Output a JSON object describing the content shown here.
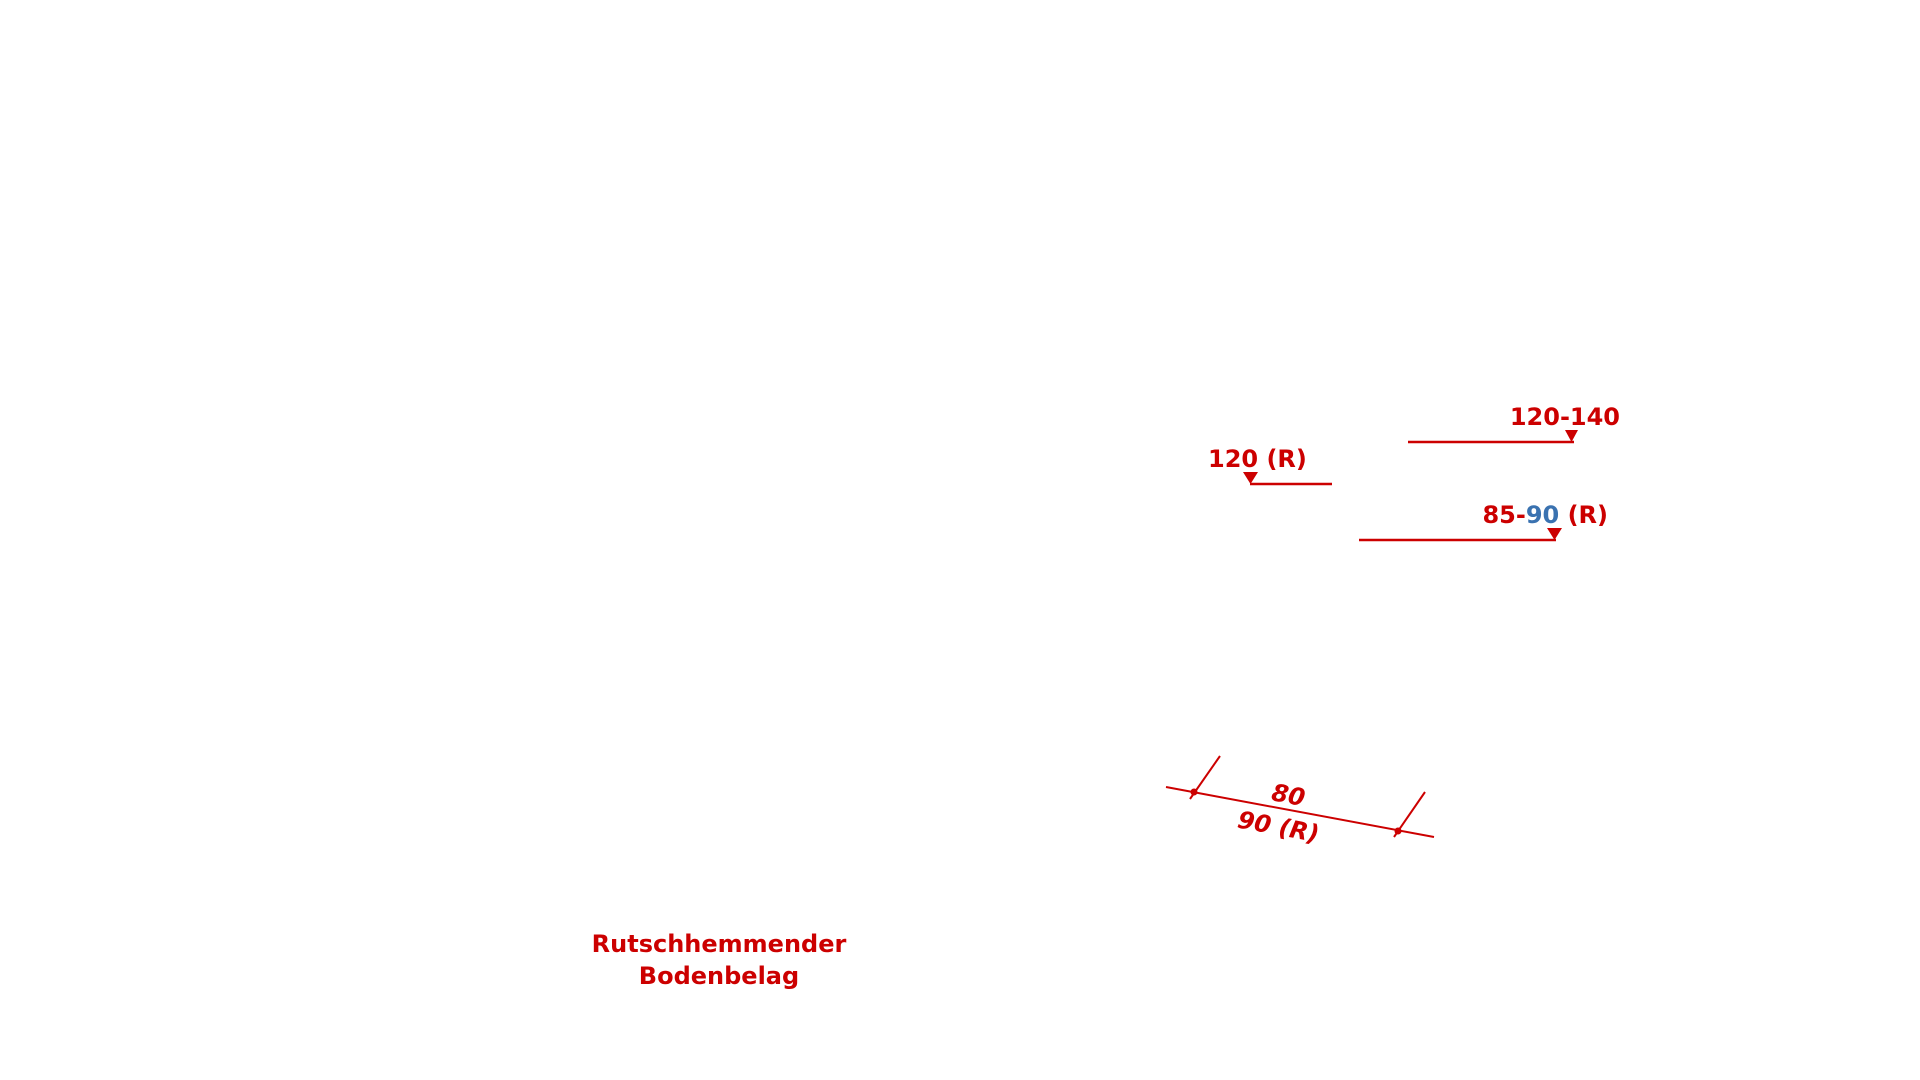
{
  "colors": {
    "annotation": "#cc0000",
    "highlight": "#3a72b0"
  },
  "level_markers": [
    {
      "label": "120-140"
    },
    {
      "label": "120 (R)"
    },
    {
      "label_prefix": "85-",
      "label_highlight": "90",
      "label_suffix": " (R)"
    }
  ],
  "dimension": {
    "top_label": "80",
    "bottom_label": "90 (R)"
  },
  "floor_note": {
    "line1": "Rutschhemmender",
    "line2": "Bodenbelag"
  }
}
